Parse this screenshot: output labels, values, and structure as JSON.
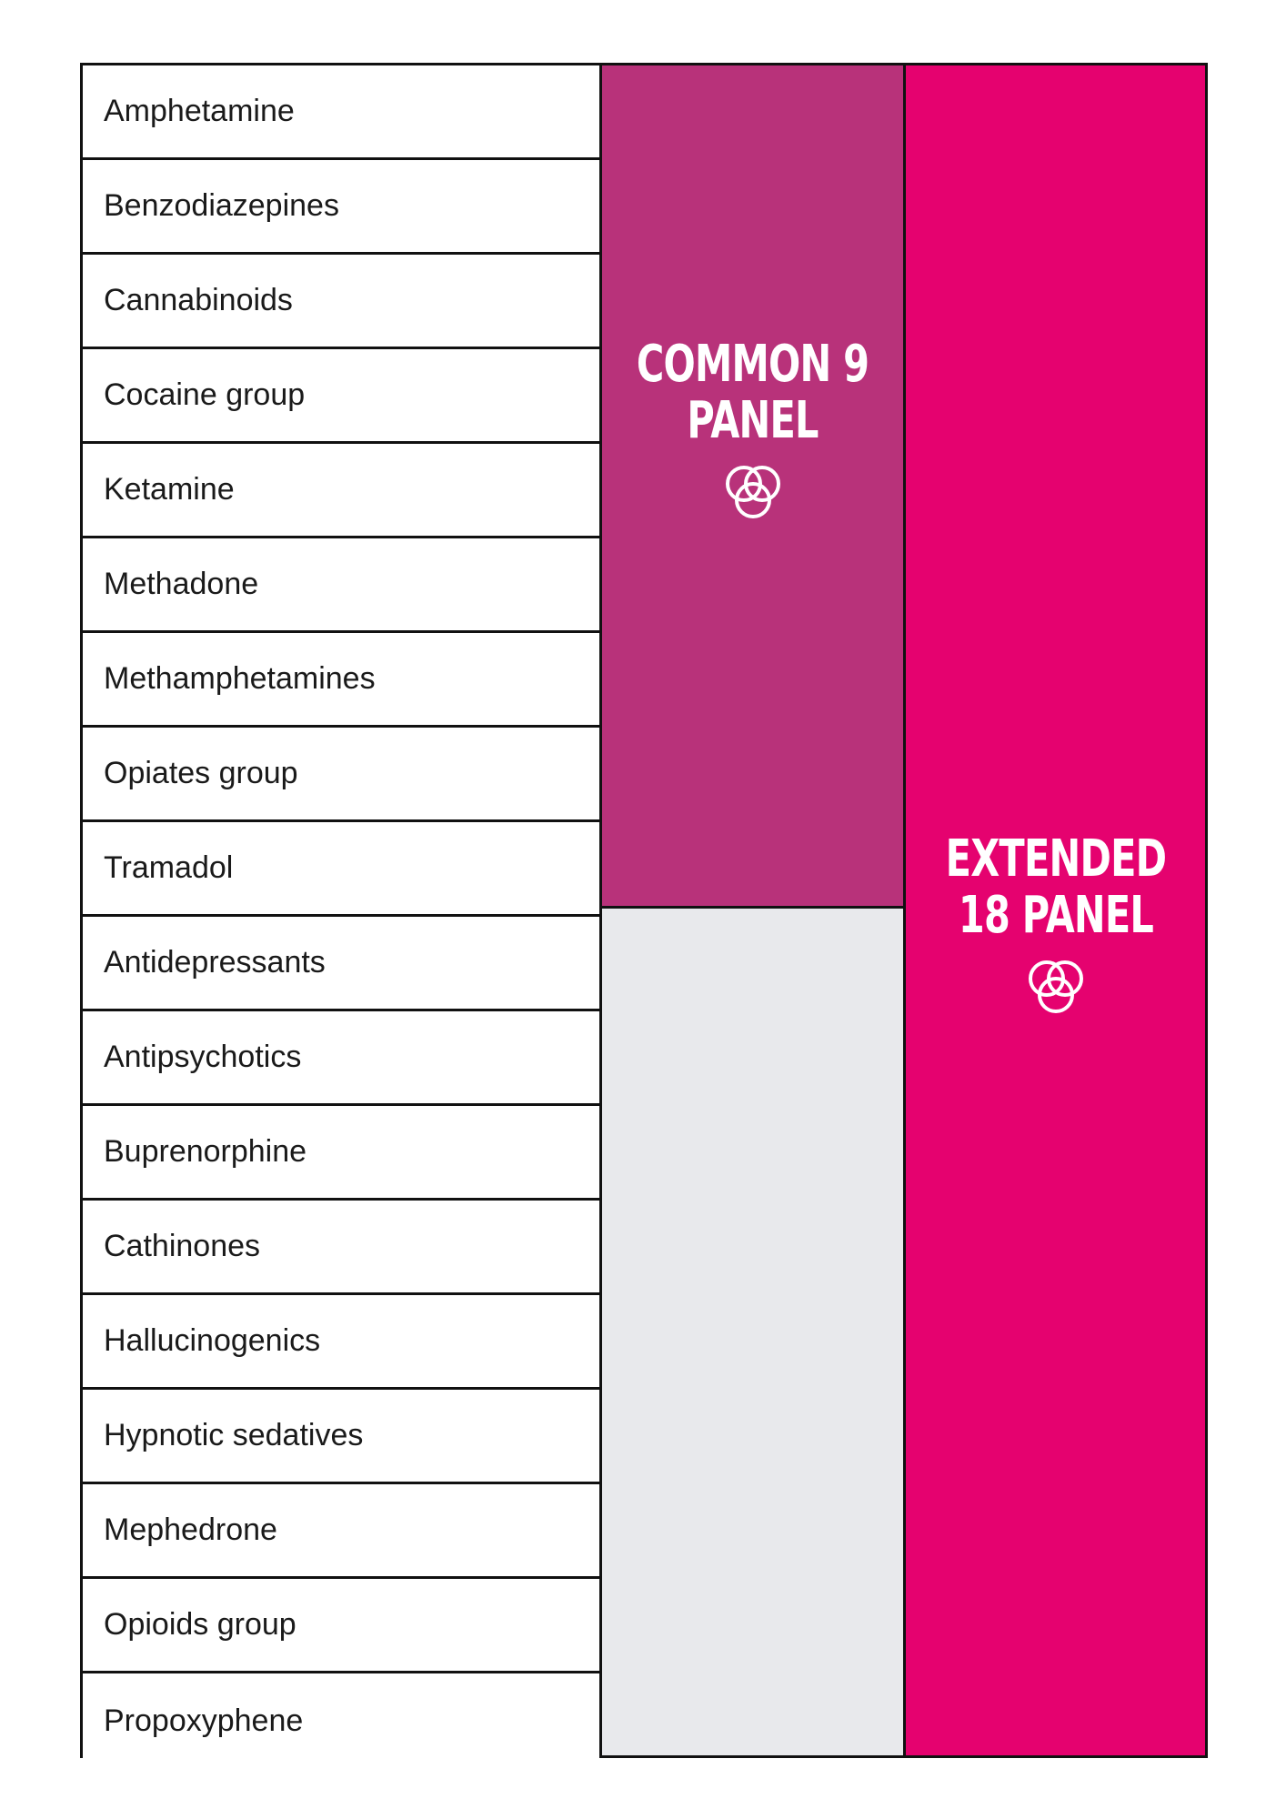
{
  "drugs": [
    "Amphetamine",
    "Benzodiazepines",
    "Cannabinoids",
    "Cocaine group",
    "Ketamine",
    "Methadone",
    "Methamphetamines",
    "Opiates group",
    "Tramadol",
    "Antidepressants",
    "Antipsychotics",
    "Buprenorphine",
    "Cathinones",
    "Hallucinogenics",
    "Hypnotic sedatives",
    "Mephedrone",
    "Opioids group",
    "Propoxyphene"
  ],
  "panels": {
    "common": {
      "line1": "COMMON 9",
      "line2": "PANEL",
      "icon": "three-circles-icon",
      "color": "#b8327a"
    },
    "extended": {
      "line1": "EXTENDED",
      "line2": "18 PANEL",
      "icon": "three-circles-icon",
      "color": "#e5026f"
    },
    "gap_color": "#e8e9ec"
  }
}
